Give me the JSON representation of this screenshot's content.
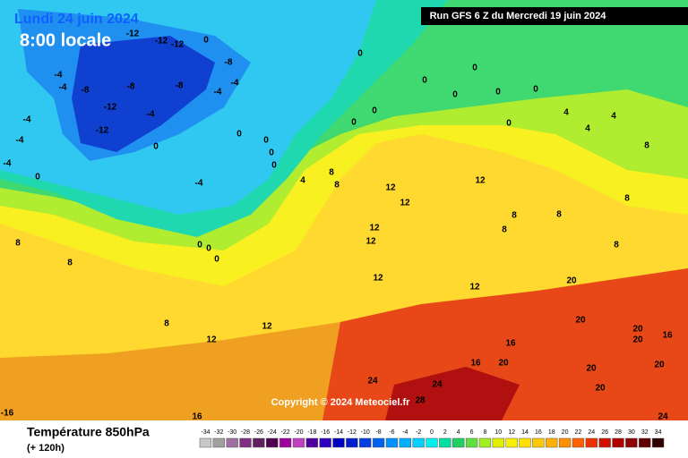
{
  "header": {
    "date": "Lundi 24 juin 2024",
    "time": "8:00 locale",
    "run": "Run GFS 6 Z du Mercredi 19 juin 2024"
  },
  "copyright": "Copyright © 2024 Meteociel.fr",
  "footer": {
    "title": "Température 850hPa",
    "lead": "(+ 120h)"
  },
  "legend": {
    "ticks": [
      -34,
      -32,
      -30,
      -28,
      -26,
      -24,
      -22,
      -20,
      -18,
      -16,
      -14,
      -12,
      -10,
      -8,
      -6,
      -4,
      -2,
      0,
      2,
      4,
      6,
      8,
      10,
      12,
      14,
      16,
      18,
      20,
      22,
      24,
      26,
      28,
      30,
      32,
      34
    ],
    "colors": [
      "#c8c8c8",
      "#a0a0a0",
      "#a070a0",
      "#803080",
      "#602060",
      "#500050",
      "#a000a0",
      "#c040c0",
      "#5000a0",
      "#3000c0",
      "#0000c0",
      "#0020d0",
      "#0040e0",
      "#0060f0",
      "#0090ff",
      "#00b0ff",
      "#00d0ff",
      "#00f0f0",
      "#00e0a0",
      "#20d060",
      "#60e040",
      "#a0f020",
      "#e0f000",
      "#f8f000",
      "#ffe000",
      "#ffc800",
      "#ffb000",
      "#ff9000",
      "#ff6000",
      "#f03000",
      "#d01000",
      "#b00000",
      "#900000",
      "#600000",
      "#300000"
    ]
  },
  "map": {
    "labels": [
      -12,
      -12,
      -12,
      0,
      0,
      0,
      0,
      0,
      0,
      0,
      0,
      0,
      0,
      4,
      4,
      4,
      8,
      -4,
      -4,
      -8,
      -8,
      -8,
      -4,
      -4,
      -8,
      -12,
      -4,
      -4,
      -12,
      -4,
      0,
      0,
      0,
      0,
      0,
      -4,
      0,
      -4,
      4,
      8,
      8,
      12,
      12,
      12,
      8,
      8,
      8,
      12,
      12,
      8,
      8,
      0,
      0,
      0,
      8,
      8,
      12,
      12,
      20,
      20,
      20,
      20,
      16,
      12,
      12,
      8,
      16,
      16,
      20,
      20,
      20,
      24,
      24,
      20,
      28,
      16,
      24,
      -16
    ]
  }
}
